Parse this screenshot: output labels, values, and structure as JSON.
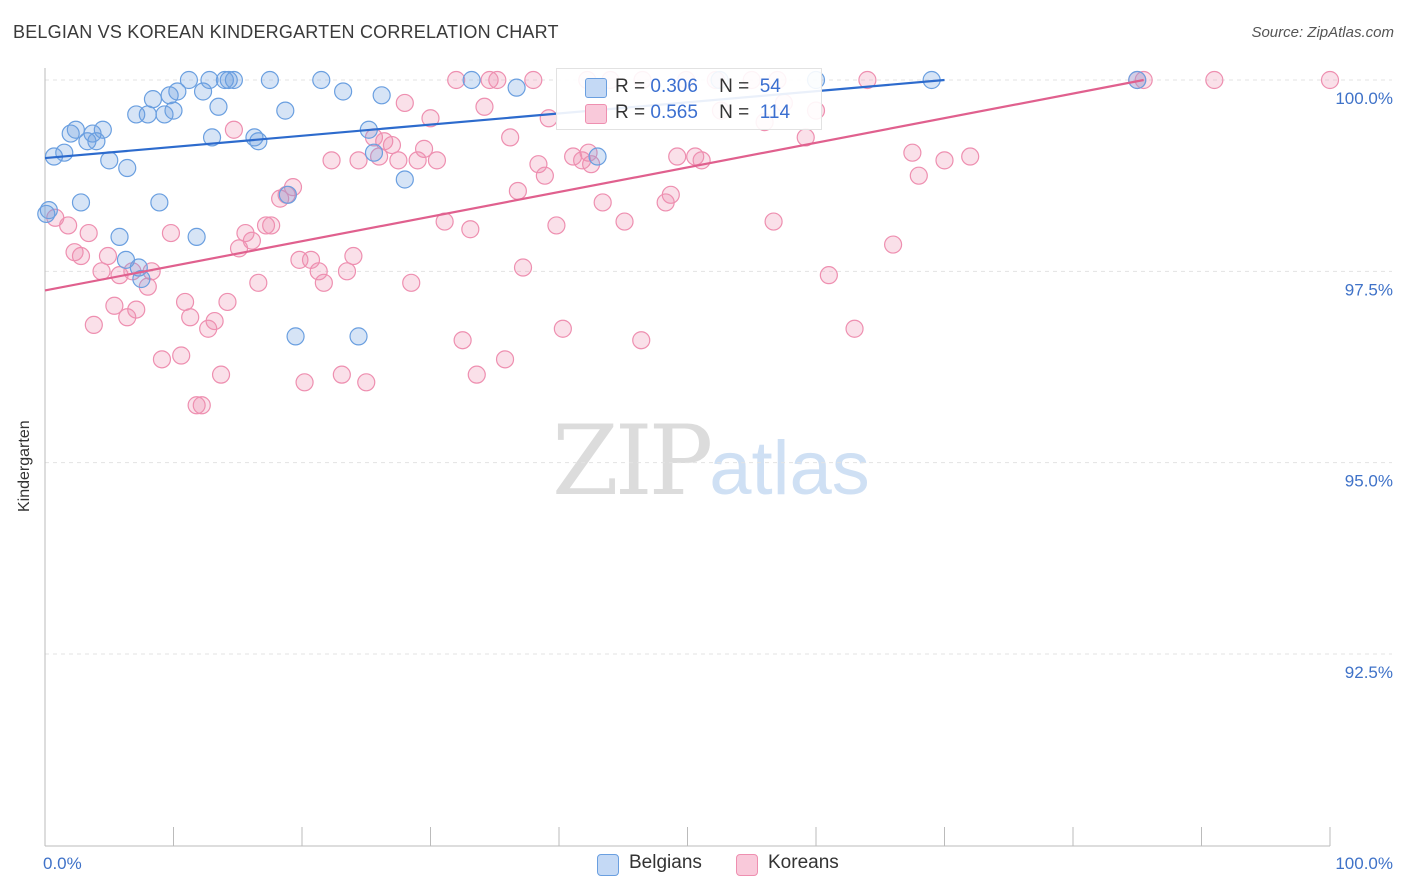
{
  "header": {
    "title": "BELGIAN VS KOREAN KINDERGARTEN CORRELATION CHART",
    "source": "Source: ZipAtlas.com"
  },
  "watermark": {
    "zip": "ZIP",
    "atlas": "atlas"
  },
  "colors": {
    "belgian": "#6a9fe0",
    "belgian_line": "#2d6bcd",
    "korean": "#ee8fb0",
    "korean_line": "#e0608e",
    "axis_text": "#3f72c8",
    "grid": "#e3e3e3"
  },
  "legend": {
    "belgians": {
      "r_label": "R =",
      "r_value": "0.306",
      "n_label": "N =",
      "n_value": "54"
    },
    "koreans": {
      "r_label": "R =",
      "r_value": "0.565",
      "n_label": "N =",
      "n_value": "114"
    }
  },
  "bottom_legend": {
    "belgians": "Belgians",
    "koreans": "Koreans"
  },
  "chart_data": {
    "type": "scatter",
    "title": "BELGIAN VS KOREAN KINDERGARTEN CORRELATION CHART",
    "xlabel": "",
    "ylabel": "Kindergarten",
    "xlim": [
      0,
      100
    ],
    "ylim": [
      90.0,
      100.4
    ],
    "x_tick_labels": [
      {
        "value": 0,
        "label": "0.0%"
      },
      {
        "value": 100,
        "label": "100.0%"
      }
    ],
    "y_tick_labels": [
      {
        "value": 100.0,
        "label": "100.0%"
      },
      {
        "value": 97.5,
        "label": "97.5%"
      },
      {
        "value": 95.0,
        "label": "95.0%"
      },
      {
        "value": 92.5,
        "label": "92.5%"
      }
    ],
    "series": [
      {
        "name": "Belgians",
        "r": 0.306,
        "n": 54,
        "trend": {
          "x": [
            0,
            70
          ],
          "y": [
            98.98,
            100.0
          ]
        },
        "points": [
          [
            0.3,
            98.3
          ],
          [
            0.7,
            99.0
          ],
          [
            1.5,
            99.05
          ],
          [
            2.0,
            99.3
          ],
          [
            2.4,
            99.35
          ],
          [
            2.8,
            98.4
          ],
          [
            3.3,
            99.2
          ],
          [
            3.7,
            99.3
          ],
          [
            4.0,
            99.2
          ],
          [
            4.5,
            99.35
          ],
          [
            5.0,
            98.95
          ],
          [
            5.8,
            97.95
          ],
          [
            6.3,
            97.65
          ],
          [
            6.4,
            98.85
          ],
          [
            7.1,
            99.55
          ],
          [
            7.3,
            97.55
          ],
          [
            7.5,
            97.4
          ],
          [
            8.0,
            99.55
          ],
          [
            8.4,
            99.75
          ],
          [
            8.9,
            98.4
          ],
          [
            9.3,
            99.55
          ],
          [
            9.7,
            99.8
          ],
          [
            10.0,
            99.6
          ],
          [
            10.3,
            99.85
          ],
          [
            11.2,
            100.0
          ],
          [
            11.8,
            97.95
          ],
          [
            12.3,
            99.85
          ],
          [
            12.8,
            100.0
          ],
          [
            13.0,
            99.25
          ],
          [
            13.5,
            99.65
          ],
          [
            14.0,
            100.0
          ],
          [
            14.3,
            100.0
          ],
          [
            14.7,
            100.0
          ],
          [
            16.3,
            99.25
          ],
          [
            16.6,
            99.2
          ],
          [
            17.5,
            100.0
          ],
          [
            18.7,
            99.6
          ],
          [
            18.9,
            98.5
          ],
          [
            19.5,
            96.65
          ],
          [
            21.5,
            100.0
          ],
          [
            23.2,
            99.85
          ],
          [
            24.4,
            96.65
          ],
          [
            25.2,
            99.35
          ],
          [
            25.6,
            99.05
          ],
          [
            26.2,
            99.8
          ],
          [
            28.0,
            98.7
          ],
          [
            33.2,
            100.0
          ],
          [
            36.7,
            99.9
          ],
          [
            43.0,
            99.0
          ],
          [
            52.5,
            100.0
          ],
          [
            60.0,
            100.0
          ],
          [
            69.0,
            100.0
          ],
          [
            85.0,
            100.0
          ],
          [
            0.1,
            98.25
          ]
        ]
      },
      {
        "name": "Koreans",
        "r": 0.565,
        "n": 114,
        "trend": {
          "x": [
            0,
            85.5
          ],
          "y": [
            97.25,
            100.0
          ]
        },
        "points": [
          [
            0.8,
            98.2
          ],
          [
            1.8,
            98.1
          ],
          [
            2.3,
            97.75
          ],
          [
            2.8,
            97.7
          ],
          [
            3.4,
            98.0
          ],
          [
            3.8,
            96.8
          ],
          [
            4.4,
            97.5
          ],
          [
            4.9,
            97.7
          ],
          [
            5.4,
            97.05
          ],
          [
            5.8,
            97.45
          ],
          [
            6.4,
            96.9
          ],
          [
            6.8,
            97.5
          ],
          [
            7.1,
            97.0
          ],
          [
            8.0,
            97.3
          ],
          [
            8.3,
            97.5
          ],
          [
            9.1,
            96.35
          ],
          [
            9.8,
            98.0
          ],
          [
            10.6,
            96.4
          ],
          [
            10.9,
            97.1
          ],
          [
            11.3,
            96.9
          ],
          [
            11.8,
            95.75
          ],
          [
            12.2,
            95.75
          ],
          [
            12.7,
            96.75
          ],
          [
            13.2,
            96.85
          ],
          [
            13.7,
            96.15
          ],
          [
            14.2,
            97.1
          ],
          [
            14.7,
            99.35
          ],
          [
            15.1,
            97.8
          ],
          [
            15.6,
            98.0
          ],
          [
            16.1,
            97.9
          ],
          [
            16.6,
            97.35
          ],
          [
            17.2,
            98.1
          ],
          [
            17.6,
            98.1
          ],
          [
            18.3,
            98.45
          ],
          [
            18.8,
            98.5
          ],
          [
            19.3,
            98.6
          ],
          [
            19.8,
            97.65
          ],
          [
            20.2,
            96.05
          ],
          [
            20.7,
            97.65
          ],
          [
            21.3,
            97.5
          ],
          [
            21.7,
            97.35
          ],
          [
            22.3,
            98.95
          ],
          [
            23.1,
            96.15
          ],
          [
            23.5,
            97.5
          ],
          [
            24.0,
            97.7
          ],
          [
            24.4,
            98.95
          ],
          [
            25.0,
            96.05
          ],
          [
            25.6,
            99.25
          ],
          [
            26.0,
            99.0
          ],
          [
            26.4,
            99.2
          ],
          [
            27.0,
            99.15
          ],
          [
            27.5,
            98.95
          ],
          [
            28.0,
            99.7
          ],
          [
            28.5,
            97.35
          ],
          [
            29.0,
            98.95
          ],
          [
            29.5,
            99.1
          ],
          [
            30.0,
            99.5
          ],
          [
            30.5,
            98.95
          ],
          [
            31.1,
            98.15
          ],
          [
            32.0,
            100.0
          ],
          [
            32.5,
            96.6
          ],
          [
            33.1,
            98.05
          ],
          [
            33.6,
            96.15
          ],
          [
            34.2,
            99.65
          ],
          [
            34.6,
            100.0
          ],
          [
            35.2,
            100.0
          ],
          [
            35.8,
            96.35
          ],
          [
            36.2,
            99.25
          ],
          [
            36.8,
            98.55
          ],
          [
            37.2,
            97.55
          ],
          [
            38.0,
            100.0
          ],
          [
            38.4,
            98.9
          ],
          [
            38.9,
            98.75
          ],
          [
            39.2,
            99.5
          ],
          [
            39.8,
            98.1
          ],
          [
            40.3,
            96.75
          ],
          [
            41.1,
            99.0
          ],
          [
            41.8,
            98.95
          ],
          [
            42.2,
            100.0
          ],
          [
            42.5,
            98.9
          ],
          [
            43.4,
            98.4
          ],
          [
            44.0,
            100.0
          ],
          [
            45.1,
            98.15
          ],
          [
            46.4,
            96.6
          ],
          [
            48.3,
            98.4
          ],
          [
            48.7,
            98.5
          ],
          [
            49.2,
            99.0
          ],
          [
            50.6,
            99.0
          ],
          [
            51.1,
            98.95
          ],
          [
            52.2,
            100.0
          ],
          [
            52.6,
            99.6
          ],
          [
            55.0,
            100.0
          ],
          [
            56.0,
            99.45
          ],
          [
            56.7,
            98.15
          ],
          [
            57.0,
            100.0
          ],
          [
            57.5,
            99.7
          ],
          [
            59.2,
            99.25
          ],
          [
            60.0,
            99.6
          ],
          [
            61.0,
            97.45
          ],
          [
            63.0,
            96.75
          ],
          [
            66.0,
            97.85
          ],
          [
            67.5,
            99.05
          ],
          [
            68.0,
            98.75
          ],
          [
            70.0,
            98.95
          ],
          [
            72.0,
            99.0
          ],
          [
            85.0,
            100.0
          ],
          [
            85.5,
            100.0
          ],
          [
            91.0,
            100.0
          ],
          [
            100.0,
            100.0
          ],
          [
            64.0,
            100.0
          ],
          [
            46.5,
            100.0
          ],
          [
            49.9,
            100.0
          ],
          [
            42.3,
            99.05
          ]
        ]
      }
    ]
  }
}
